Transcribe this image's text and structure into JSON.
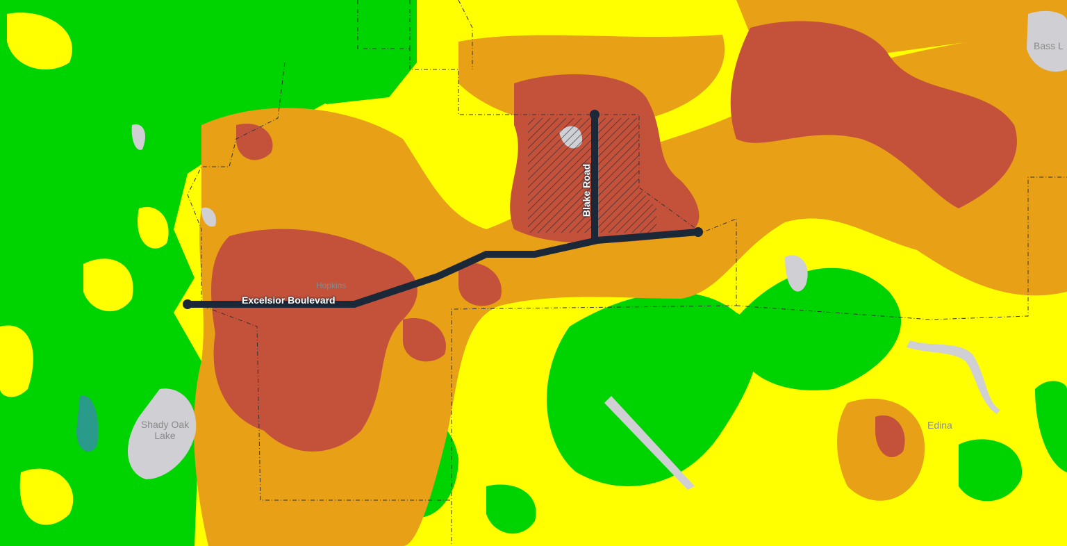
{
  "map": {
    "legend_colors": {
      "very_low": "#00d400",
      "low": "#ffff00",
      "moderate": "#e8a017",
      "high": "#c4523a",
      "water": "#cfcfd4",
      "wetland": "#2a9a8a",
      "road": "#1a2838"
    },
    "places": {
      "hopkins": "Hopkins",
      "edina": "Edina",
      "shady_oak_lake": "Shady Oak Lake",
      "bass_lake": "Bass L"
    },
    "roads": {
      "excelsior": "Excelsior Boulevard",
      "blake": "Blake Road"
    }
  }
}
